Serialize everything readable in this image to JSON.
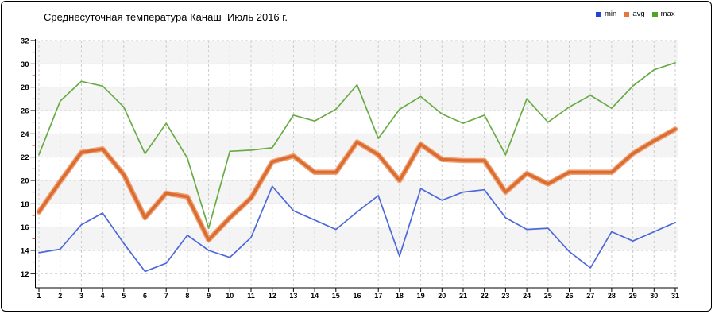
{
  "title": "Среднесуточная температура Канаш  Июль 2016 г.",
  "legend": {
    "items": [
      {
        "label": "min",
        "color": "#2643d8"
      },
      {
        "label": "avg",
        "color": "#e6763c"
      },
      {
        "label": "max",
        "color": "#4fa424"
      }
    ]
  },
  "colors": {
    "background": "#ffffff",
    "band_gray": "#f4f4f4",
    "grid": "#cbcbcb",
    "axis": "#000000",
    "minor_tick": "#bb3322",
    "border": "#000000"
  },
  "chart_data": {
    "type": "line",
    "title": "Среднесуточная температура Канаш  Июль 2016 г.",
    "x": [
      1,
      2,
      3,
      4,
      5,
      6,
      7,
      8,
      9,
      10,
      11,
      12,
      13,
      14,
      15,
      16,
      17,
      18,
      19,
      20,
      21,
      22,
      23,
      24,
      25,
      26,
      27,
      28,
      29,
      30,
      31
    ],
    "xlabel": "",
    "ylabel": "",
    "ylim": [
      12,
      32
    ],
    "ytick_step": 2,
    "ytick_labels": [
      12,
      14,
      16,
      18,
      20,
      22,
      24,
      26,
      28,
      30,
      32
    ],
    "grid": true,
    "alternating_bands": true,
    "legend_position": "top-right",
    "series": [
      {
        "name": "max",
        "color": "#68ab44",
        "line_width": 1.7,
        "values": [
          22.2,
          26.8,
          28.5,
          28.1,
          26.3,
          22.3,
          24.9,
          21.9,
          15.9,
          22.5,
          22.6,
          22.8,
          25.6,
          25.1,
          26.1,
          28.2,
          23.6,
          26.1,
          27.2,
          25.7,
          24.9,
          25.6,
          22.2,
          27.0,
          25.0,
          26.3,
          27.3,
          26.2,
          28.1,
          29.5,
          30.1
        ]
      },
      {
        "name": "min",
        "color": "#4d68da",
        "line_width": 1.7,
        "values": [
          13.8,
          14.1,
          16.2,
          17.2,
          14.6,
          12.2,
          12.9,
          15.3,
          14.0,
          13.4,
          15.1,
          19.5,
          17.4,
          16.6,
          15.8,
          17.3,
          18.7,
          13.5,
          19.3,
          18.3,
          19.0,
          19.2,
          16.8,
          15.8,
          15.9,
          13.9,
          12.5,
          15.6,
          14.8,
          15.6,
          16.4
        ]
      },
      {
        "name": "avg",
        "color": "#db6c30",
        "halo_color": "#f0a074",
        "line_width": 3.6,
        "values": [
          17.3,
          19.9,
          22.4,
          22.7,
          20.5,
          16.8,
          18.9,
          18.6,
          14.9,
          16.8,
          18.5,
          21.6,
          22.1,
          20.7,
          20.7,
          23.3,
          22.2,
          20.0,
          23.1,
          21.8,
          21.7,
          21.7,
          19.0,
          20.6,
          19.7,
          20.7,
          20.7,
          20.7,
          22.3,
          23.4,
          24.4
        ]
      }
    ]
  }
}
